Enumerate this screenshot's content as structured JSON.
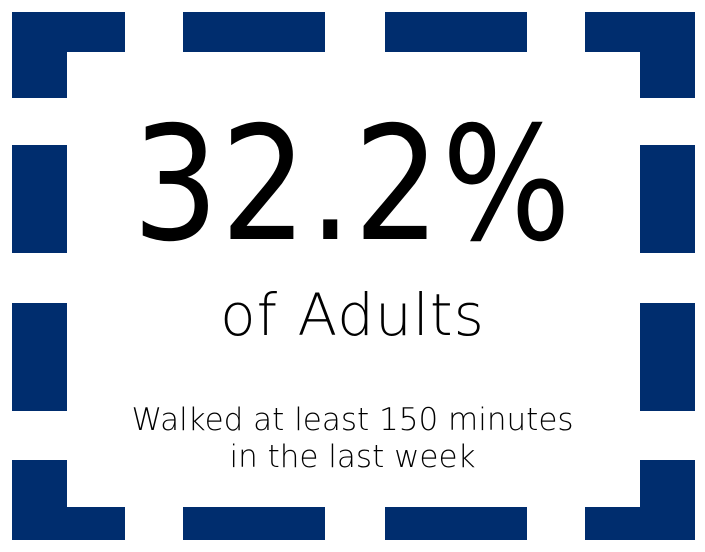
{
  "theme": {
    "frame_color": "#002d6e",
    "text_color": "#000000",
    "background": "#ffffff"
  },
  "stat": {
    "value": "32.2%",
    "label": "of Adults",
    "description_line1": "Walked at least 150 minutes",
    "description_line2": "in the last week"
  }
}
